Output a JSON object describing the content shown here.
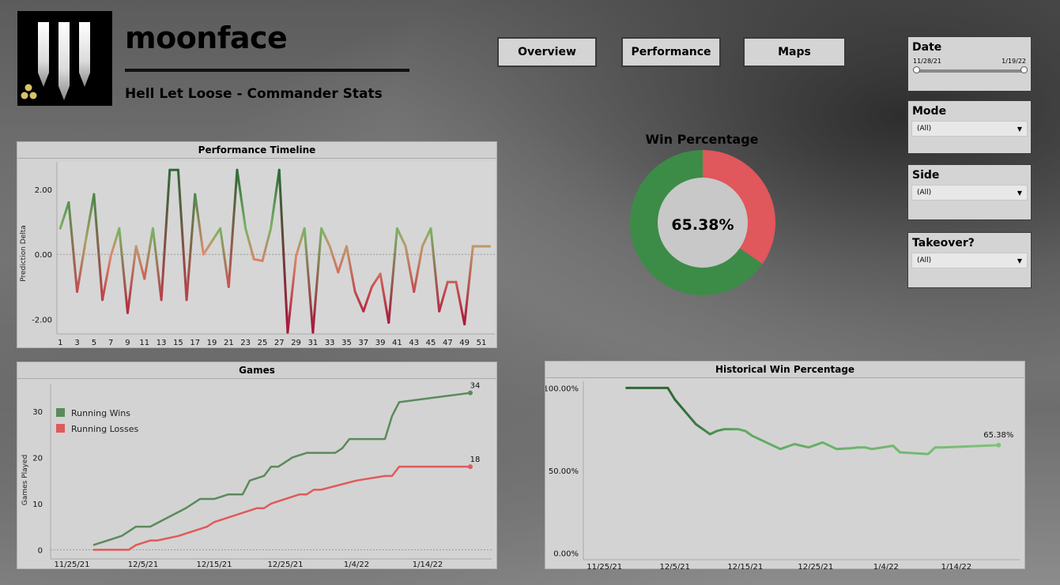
{
  "header": {
    "app_title": "moonface",
    "subtitle": "Hell Let Loose - Commander Stats"
  },
  "nav": [
    {
      "label": "Overview"
    },
    {
      "label": "Performance"
    },
    {
      "label": "Maps"
    }
  ],
  "filters": {
    "date": {
      "title": "Date",
      "start": "11/28/21",
      "end": "1/19/22"
    },
    "mode": {
      "title": "Mode",
      "value": "(All)"
    },
    "side": {
      "title": "Side",
      "value": "(All)"
    },
    "takeover": {
      "title": "Takeover?",
      "value": "(All)"
    }
  },
  "win_percentage": {
    "title": "Win Percentage",
    "value_label": "65.38%",
    "win_fraction": 0.6538,
    "colors": {
      "win": "#3c8c48",
      "loss": "#e0575c",
      "hole": "#c8c8c8"
    }
  },
  "chart_data": [
    {
      "type": "line",
      "title": "Performance Timeline",
      "ylabel": "Prediction Delta",
      "ylim": [
        -2.45,
        2.85
      ],
      "yticks": [
        "2.00",
        "0.00",
        "-2.00"
      ],
      "ytick_values": [
        2,
        0,
        -2
      ],
      "xtick_labels": [
        "1",
        "3",
        "5",
        "7",
        "9",
        "11",
        "13",
        "15",
        "17",
        "19",
        "21",
        "23",
        "25",
        "27",
        "29",
        "31",
        "33",
        "35",
        "37",
        "39",
        "41",
        "43",
        "45",
        "47",
        "49",
        "51"
      ],
      "x": [
        1,
        2,
        3,
        4,
        5,
        6,
        7,
        8,
        9,
        10,
        11,
        12,
        13,
        14,
        15,
        16,
        17,
        18,
        19,
        20,
        21,
        22,
        23,
        24,
        25,
        26,
        27,
        28,
        29,
        30,
        31,
        32,
        33,
        34,
        35,
        36,
        37,
        38,
        39,
        40,
        41,
        42,
        43,
        44,
        45,
        46,
        47,
        48,
        49,
        50,
        51,
        52
      ],
      "values": [
        0.8,
        1.6,
        -1.15,
        0.4,
        1.85,
        -1.4,
        -0.05,
        0.8,
        -1.8,
        0.25,
        -0.75,
        0.8,
        -1.4,
        2.6,
        2.6,
        -1.4,
        1.85,
        0,
        0.4,
        0.8,
        -1.0,
        2.6,
        0.8,
        -0.15,
        -0.2,
        0.8,
        2.6,
        -2.4,
        -0.05,
        0.8,
        -2.4,
        0.8,
        0.25,
        -0.55,
        0.25,
        -1.15,
        -1.75,
        -1.0,
        -0.6,
        -2.1,
        0.8,
        0.25,
        -1.15,
        0.25,
        0.8,
        -1.75,
        -0.85,
        -0.85,
        -2.15,
        0.25,
        0.25,
        0.25
      ],
      "colors": {
        "high": "#2f6a36",
        "mid": "#78b364",
        "zero": "#e08a6a",
        "low": "#a8143a"
      }
    },
    {
      "type": "line",
      "title": "Games",
      "ylabel": "Games Played",
      "ylim": [
        -2,
        36
      ],
      "yticks": [
        "0",
        "10",
        "20",
        "30"
      ],
      "ytick_values": [
        0,
        10,
        20,
        30
      ],
      "xtick_labels": [
        "11/25/21",
        "12/5/21",
        "12/15/21",
        "12/25/21",
        "1/4/22",
        "1/14/22"
      ],
      "xtick_values": [
        0,
        10,
        20,
        30,
        40,
        50
      ],
      "xlim": [
        -3,
        59
      ],
      "series": [
        {
          "name": "Running Wins",
          "color": "#5b8a5b",
          "end_label": "34",
          "x": [
            3,
            7,
            9,
            11,
            16,
            18,
            20,
            22,
            24,
            25,
            27,
            28,
            29,
            31,
            33,
            37,
            38,
            39,
            44,
            45,
            46,
            51,
            56
          ],
          "values": [
            1,
            3,
            5,
            5,
            9,
            11,
            11,
            12,
            12,
            15,
            16,
            18,
            18,
            20,
            21,
            21,
            22,
            24,
            24,
            29,
            32,
            33,
            34
          ]
        },
        {
          "name": "Running Losses",
          "color": "#e05a5a",
          "end_label": "18",
          "x": [
            3,
            8,
            9,
            11,
            12,
            15,
            17,
            19,
            20,
            22,
            24,
            26,
            27,
            28,
            32,
            33,
            34,
            35,
            40,
            44,
            45,
            46,
            56
          ],
          "values": [
            0,
            0,
            1,
            2,
            2,
            3,
            4,
            5,
            6,
            7,
            8,
            9,
            9,
            10,
            12,
            12,
            13,
            13,
            15,
            16,
            16,
            18,
            18
          ]
        }
      ]
    },
    {
      "type": "line",
      "title": "Historical Win Percentage",
      "yticks": [
        "100.00%",
        "50.00%",
        "0.00%"
      ],
      "ytick_values": [
        100,
        50,
        0
      ],
      "ylim": [
        -4,
        104
      ],
      "xtick_labels": [
        "11/25/21",
        "12/5/21",
        "12/15/21",
        "12/25/21",
        "1/4/22",
        "1/14/22"
      ],
      "xtick_values": [
        0,
        10,
        20,
        30,
        40,
        50
      ],
      "xlim": [
        -3,
        59
      ],
      "end_label": "65.38%",
      "colors": {
        "start": "#2f6a36",
        "end": "#7fc27a"
      },
      "x": [
        3,
        9,
        10,
        12,
        13,
        15,
        16,
        17,
        19,
        20,
        21,
        22,
        23,
        24,
        25,
        27,
        28,
        29,
        31,
        33,
        35,
        36,
        37,
        38,
        41,
        42,
        46,
        47,
        48,
        56
      ],
      "values": [
        100,
        100,
        93,
        83,
        78,
        72,
        74,
        75,
        75,
        74,
        71,
        69,
        67,
        65,
        63,
        66,
        65,
        64,
        67,
        63,
        63.5,
        64,
        64,
        63,
        65,
        61,
        60,
        64,
        64,
        65.38
      ]
    }
  ]
}
